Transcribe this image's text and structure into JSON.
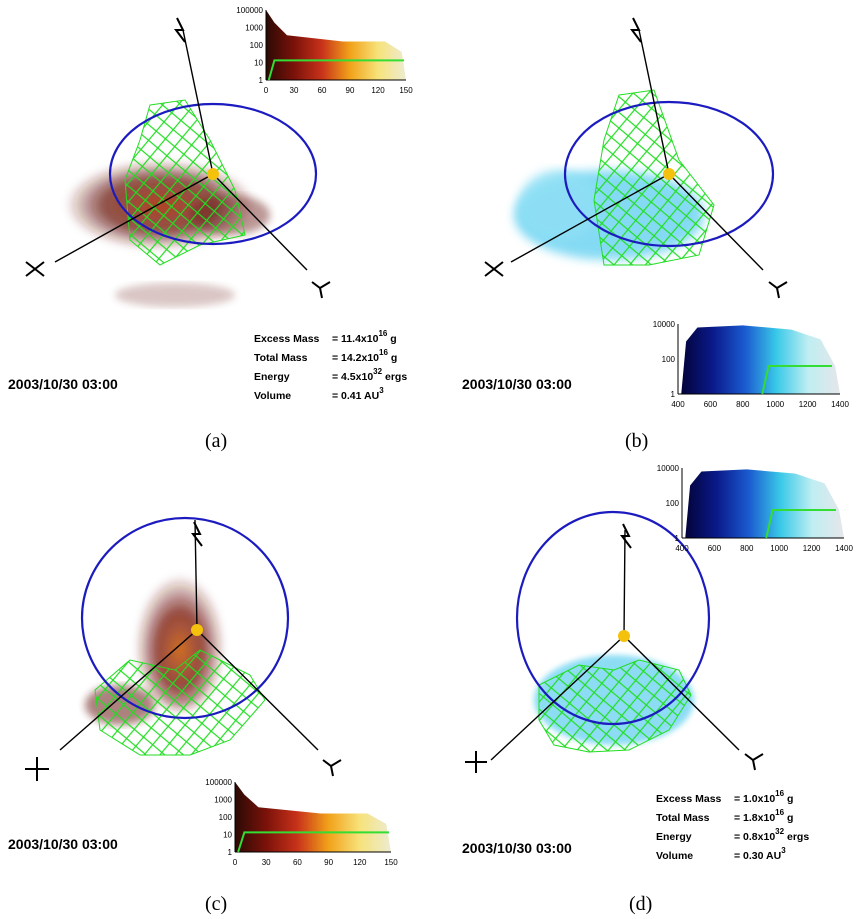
{
  "panels": [
    {
      "caption": "(a)",
      "date": "2003/10/30 03:00",
      "axes": {
        "x": "X",
        "y": "Y",
        "z": "Z"
      },
      "cloud_color": "dark-red",
      "colorbar": {
        "y_ticks": [
          "100000",
          "1000",
          "100",
          "10",
          "1"
        ],
        "x_ticks": [
          "0",
          "30",
          "60",
          "90",
          "120",
          "150"
        ],
        "gradient": [
          "#2b0a04",
          "#7a120a",
          "#c8321a",
          "#f2a21a",
          "#f7e27a",
          "#ececd2"
        ],
        "line_color": "#33dd33"
      },
      "stats": [
        {
          "label": "Excess Mass",
          "value": "= 11.4x10",
          "exp": "16",
          "unit": "g"
        },
        {
          "label": "Total Mass",
          "value": "= 14.2x10",
          "exp": "16",
          "unit": "g"
        },
        {
          "label": "Energy",
          "value": "= 4.5x10",
          "exp": "32",
          "unit": "ergs"
        },
        {
          "label": "Volume",
          "value": "= 0.41 AU",
          "exp": "3",
          "unit": ""
        }
      ]
    },
    {
      "caption": "(b)",
      "date": "2003/10/30 03:00",
      "axes": {
        "x": "X",
        "y": "Y",
        "z": "Z"
      },
      "cloud_color": "light-blue",
      "colorbar": {
        "y_ticks": [
          "10000",
          "100",
          "1"
        ],
        "x_ticks": [
          "400",
          "600",
          "800",
          "1000",
          "1200",
          "1400"
        ],
        "gradient": [
          "#03033a",
          "#0a1a8a",
          "#1a5ad0",
          "#39c9e8",
          "#bfeef2",
          "#e6e6ea"
        ],
        "line_color": "#33dd33"
      }
    },
    {
      "caption": "(c)",
      "date": "2003/10/30 03:00",
      "axes": {
        "x": "X",
        "y": "Y",
        "z": "Z"
      },
      "cloud_color": "dark-red",
      "colorbar": {
        "y_ticks": [
          "100000",
          "1000",
          "100",
          "10",
          "1"
        ],
        "x_ticks": [
          "0",
          "30",
          "60",
          "90",
          "120",
          "150"
        ],
        "gradient": [
          "#2b0a04",
          "#7a120a",
          "#c8321a",
          "#f2a21a",
          "#f7e27a",
          "#ececd2"
        ],
        "line_color": "#33dd33"
      }
    },
    {
      "caption": "(d)",
      "date": "2003/10/30 03:00",
      "axes": {
        "x": "X",
        "y": "Y",
        "z": "Z"
      },
      "cloud_color": "light-blue",
      "colorbar": {
        "y_ticks": [
          "10000",
          "100",
          "1"
        ],
        "x_ticks": [
          "400",
          "600",
          "800",
          "1000",
          "1200",
          "1400"
        ],
        "gradient": [
          "#03033a",
          "#0a1a8a",
          "#1a5ad0",
          "#39c9e8",
          "#bfeef2",
          "#e6e6ea"
        ],
        "line_color": "#33dd33"
      },
      "stats": [
        {
          "label": "Excess Mass",
          "value": "= 1.0x10",
          "exp": "16",
          "unit": "g"
        },
        {
          "label": "Total Mass",
          "value": "= 1.8x10",
          "exp": "16",
          "unit": "g"
        },
        {
          "label": "Energy",
          "value": "= 0.8x10",
          "exp": "32",
          "unit": "ergs"
        },
        {
          "label": "Volume",
          "value": "= 0.30 AU",
          "exp": "3",
          "unit": ""
        }
      ]
    }
  ],
  "colors": {
    "orbit": "#1b1bbf",
    "sun": "#f4c20d",
    "mesh": "#22dd22",
    "cloud_red": "#6a1a12",
    "cloud_blue": "#6fd4f2"
  }
}
